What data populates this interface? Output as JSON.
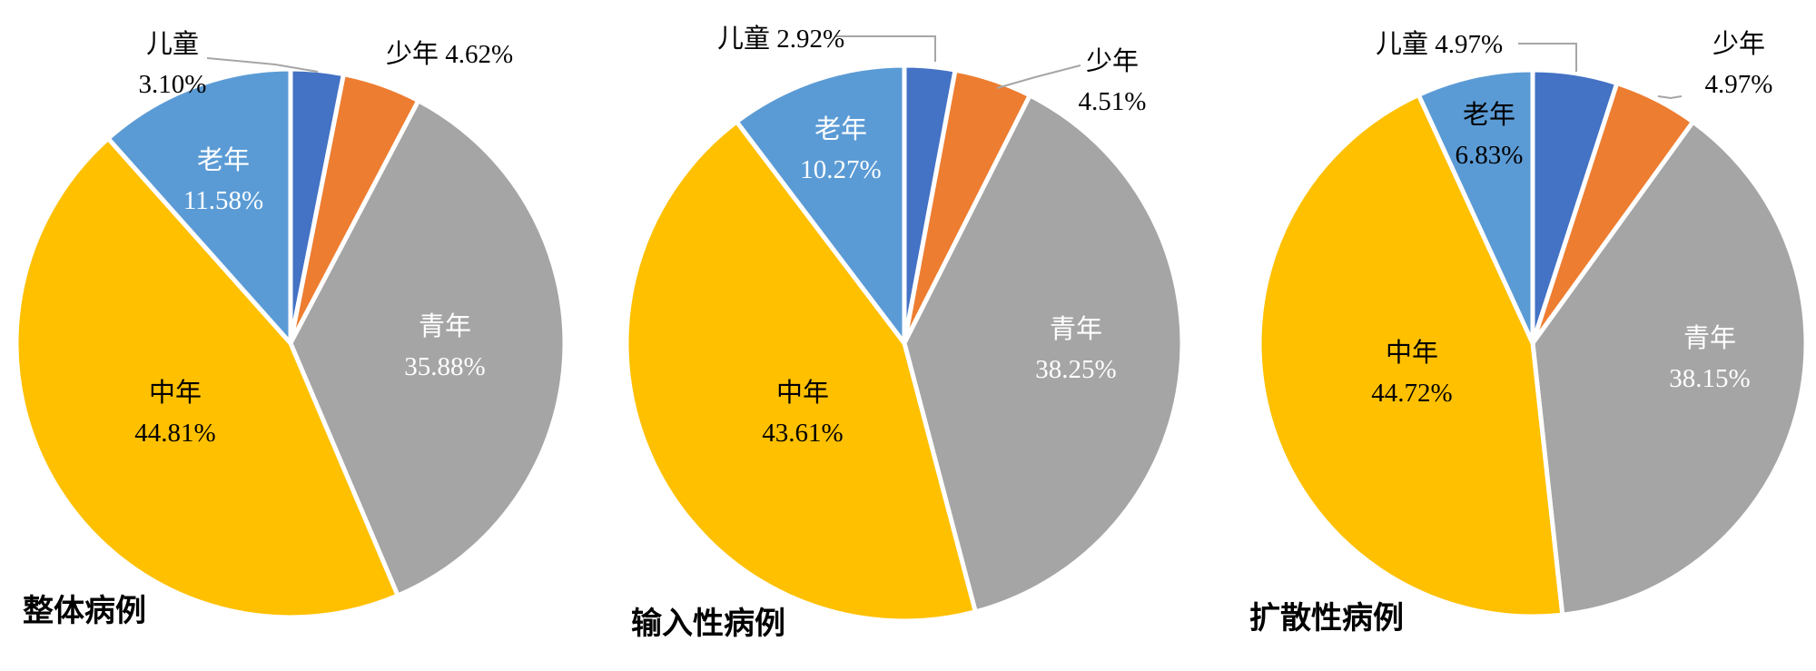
{
  "chart_data": [
    {
      "type": "pie",
      "title": "整体病例",
      "slices": [
        {
          "label": "儿童",
          "value": 3.1,
          "display": "3.10%",
          "color": "#4472C4"
        },
        {
          "label": "少年",
          "value": 4.62,
          "display": "4.62%",
          "color": "#ED7D31"
        },
        {
          "label": "青年",
          "value": 35.88,
          "display": "35.88%",
          "color": "#A5A5A5"
        },
        {
          "label": "中年",
          "value": 44.81,
          "display": "44.81%",
          "color": "#FFC000"
        },
        {
          "label": "老年",
          "value": 11.58,
          "display": "11.58%",
          "color": "#5B9BD5"
        }
      ]
    },
    {
      "type": "pie",
      "title": "输入性病例",
      "slices": [
        {
          "label": "儿童",
          "value": 2.92,
          "display": "2.92%",
          "color": "#4472C4"
        },
        {
          "label": "少年",
          "value": 4.51,
          "display": "4.51%",
          "color": "#ED7D31"
        },
        {
          "label": "青年",
          "value": 38.25,
          "display": "38.25%",
          "color": "#A5A5A5"
        },
        {
          "label": "中年",
          "value": 43.61,
          "display": "43.61%",
          "color": "#FFC000"
        },
        {
          "label": "老年",
          "value": 10.27,
          "display": "10.27%",
          "color": "#5B9BD5"
        }
      ]
    },
    {
      "type": "pie",
      "title": "扩散性病例",
      "slices": [
        {
          "label": "儿童",
          "value": 4.97,
          "display": "4.97%",
          "color": "#4472C4"
        },
        {
          "label": "少年",
          "value": 4.97,
          "display": "4.97%",
          "color": "#ED7D31"
        },
        {
          "label": "青年",
          "value": 38.15,
          "display": "38.15%",
          "color": "#A5A5A5"
        },
        {
          "label": "中年",
          "value": 44.72,
          "display": "44.72%",
          "color": "#FFC000"
        },
        {
          "label": "老年",
          "value": 6.83,
          "display": "6.83%",
          "color": "#5B9BD5"
        }
      ]
    }
  ]
}
